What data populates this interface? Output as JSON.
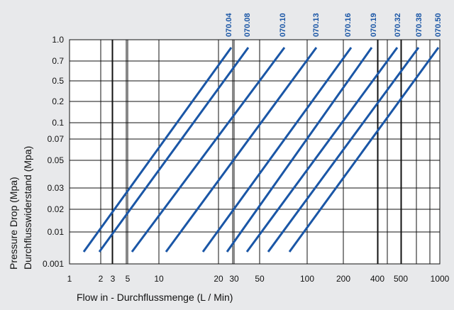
{
  "chart_data": {
    "type": "line",
    "x_scale": "log",
    "xlabel": "Flow in - Durchflussmenge (L / Min)",
    "ylabel_line1": "Pressure Drop (Mpa)",
    "ylabel_line2": "Durchflusswiderstand (Mpa)",
    "x_ticks": [
      "1",
      "2",
      "3",
      "5",
      "10",
      "20",
      "30",
      "50",
      "100",
      "200",
      "400",
      "500",
      "1000"
    ],
    "y_ticks": [
      "0.001",
      "0.01",
      "0.02",
      "0.03",
      "0.05",
      "0.07",
      "0.1",
      "0.2",
      "0.5",
      "0.7",
      "1.0"
    ],
    "grid": true,
    "line_color": "#1a56a6",
    "series": [
      {
        "name": "070.04",
        "x": [
          1.5,
          22
        ],
        "y": [
          "0.001",
          "1.0"
        ]
      },
      {
        "name": "070.08",
        "x": [
          2,
          29
        ],
        "y": [
          "0.001",
          "1.0"
        ]
      },
      {
        "name": "070.10",
        "x": [
          4,
          60
        ],
        "y": [
          "0.001",
          "1.0"
        ]
      },
      {
        "name": "070.13",
        "x": [
          8,
          110
        ],
        "y": [
          "0.001",
          "1.0"
        ]
      },
      {
        "name": "070.16",
        "x": [
          17,
          200
        ],
        "y": [
          "0.001",
          "1.0"
        ]
      },
      {
        "name": "070.19",
        "x": [
          25,
          300
        ],
        "y": [
          "0.001",
          "1.0"
        ]
      },
      {
        "name": "070.32",
        "x": [
          35,
          450
        ],
        "y": [
          "0.001",
          "1.0"
        ]
      },
      {
        "name": "070.38",
        "x": [
          50,
          620
        ],
        "y": [
          "0.001",
          "1.0"
        ]
      },
      {
        "name": "070.50",
        "x": [
          70,
          900
        ],
        "y": [
          "0.001",
          "1.0"
        ]
      }
    ]
  }
}
